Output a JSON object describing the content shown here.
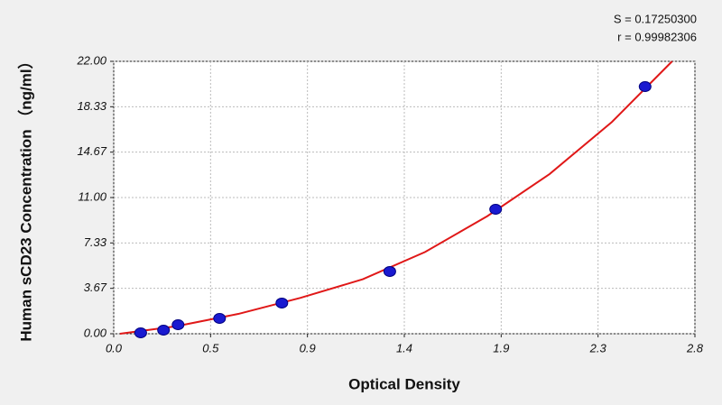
{
  "chart_data": {
    "type": "scatter",
    "annotations": [
      "S = 0.17250300",
      "r = 0.99982306"
    ],
    "x_label": "Optical Density",
    "y_label": "Human sCD23 Concentration （ng/ml）",
    "xlim": [
      0,
      2.8
    ],
    "xticks": [
      {
        "value": 0,
        "label": "0.0"
      },
      {
        "value": 0.4667,
        "label": "0.5"
      },
      {
        "value": 0.9333,
        "label": "0.9"
      },
      {
        "value": 1.4,
        "label": "1.4"
      },
      {
        "value": 1.8667,
        "label": "1.9"
      },
      {
        "value": 2.3333,
        "label": "2.3"
      },
      2.8
    ],
    "ylim": [
      0,
      22
    ],
    "yticks": [
      {
        "value": 0,
        "label": "0.00"
      },
      {
        "value": 3.6667,
        "label": "3.67"
      },
      {
        "value": 7.3333,
        "label": "7.33"
      },
      {
        "value": 11,
        "label": "11.00"
      },
      {
        "value": 14.6667,
        "label": "14.67"
      },
      {
        "value": 18.3333,
        "label": "18.33"
      },
      {
        "value": 22,
        "label": "22.00"
      }
    ],
    "grid": true,
    "series": [
      {
        "type": "line",
        "color": "#e01818",
        "x": [
          0.03,
          0.3,
          0.6,
          0.9,
          1.2,
          1.5,
          1.8,
          2.1,
          2.4,
          2.69
        ],
        "values": [
          0,
          0.6,
          1.6,
          2.9,
          4.4,
          6.6,
          9.5,
          12.9,
          17.1,
          22
        ]
      },
      {
        "type": "scatter",
        "color": "#1a1ad0",
        "x": [
          0.13,
          0.24,
          0.31,
          0.51,
          0.81,
          1.33,
          1.84,
          2.56
        ],
        "values": [
          0.07,
          0.29,
          0.73,
          1.24,
          2.48,
          5.03,
          10.05,
          19.96
        ]
      }
    ]
  }
}
